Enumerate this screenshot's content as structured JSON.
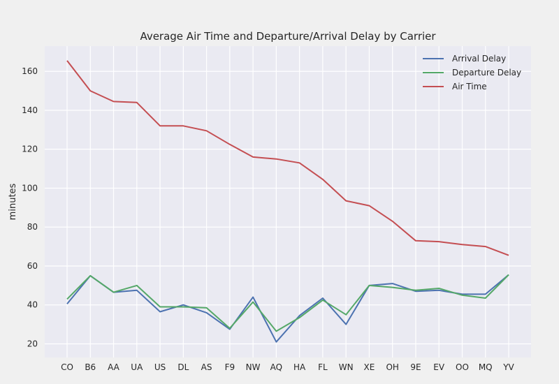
{
  "chart_data": {
    "type": "line",
    "title": "Average Air Time and Departure/Arrival Delay by Carrier",
    "xlabel": "",
    "ylabel": "minutes",
    "categories": [
      "CO",
      "B6",
      "AA",
      "UA",
      "US",
      "DL",
      "AS",
      "F9",
      "NW",
      "AQ",
      "HA",
      "FL",
      "WN",
      "XE",
      "OH",
      "9E",
      "EV",
      "OO",
      "MQ",
      "YV"
    ],
    "yticks": [
      20,
      40,
      60,
      80,
      100,
      120,
      140,
      160
    ],
    "ylim": [
      13,
      173
    ],
    "grid": true,
    "legend_position": "top-right",
    "series": [
      {
        "name": "Arrival Delay",
        "color": "#4c72b0",
        "values": [
          40.5,
          55.0,
          46.5,
          47.5,
          36.5,
          40.0,
          36.0,
          27.5,
          44.0,
          21.0,
          34.5,
          43.5,
          30.0,
          50.0,
          51.0,
          47.0,
          47.5,
          45.5,
          45.5,
          55.5
        ]
      },
      {
        "name": "Departure Delay",
        "color": "#55a868",
        "values": [
          43.0,
          55.0,
          46.5,
          50.0,
          39.0,
          39.0,
          38.5,
          28.0,
          41.5,
          26.5,
          33.5,
          42.5,
          35.0,
          50.0,
          49.0,
          47.5,
          48.5,
          45.0,
          43.5,
          55.5
        ]
      },
      {
        "name": "Air Time",
        "color": "#c44e52",
        "values": [
          165.5,
          150.0,
          144.5,
          144.0,
          132.0,
          132.0,
          129.5,
          122.5,
          116.0,
          115.0,
          113.0,
          104.5,
          93.5,
          91.0,
          83.0,
          73.0,
          72.5,
          71.0,
          70.0,
          65.5
        ]
      }
    ]
  }
}
